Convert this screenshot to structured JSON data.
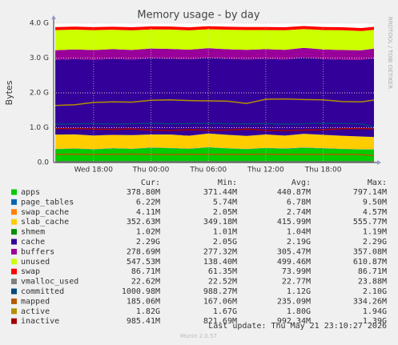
{
  "chart_data": {
    "type": "area",
    "title": "Memory usage - by day",
    "y_label": "Bytes",
    "side_text": "RRDTOOL / TOBI OETIKER",
    "footer_update": "Last update: Thu May 21 23:10:27 2026",
    "footer_version": "Munin 2.0.57",
    "stat_headers": [
      "Cur:",
      "Min:",
      "Avg:",
      "Max:"
    ],
    "categories": [
      null,
      null,
      "Wed 18:00",
      null,
      null,
      "Thu 00:00",
      null,
      null,
      "Thu 06:00",
      null,
      null,
      "Thu 12:00",
      null,
      null,
      "Thu 18:00",
      null,
      null,
      null
    ],
    "ylim": [
      0,
      4294967296
    ],
    "yticks": [
      {
        "value": 0,
        "label": "0.0"
      },
      {
        "value": 1073741824,
        "label": "1.0 G"
      },
      {
        "value": 2147483648,
        "label": "2.0 G"
      },
      {
        "value": 3221225472,
        "label": "3.0 G"
      },
      {
        "value": 4294967296,
        "label": "4.0 G"
      }
    ],
    "grid": true,
    "series": [
      {
        "name": "apps",
        "color": "#00cc00",
        "style": "area",
        "stats": [
          "378.80M",
          "371.44M",
          "440.87M",
          "797.14M"
        ],
        "values": [
          410000000,
          425000000,
          402000000,
          433000000,
          415000000,
          452000000,
          441000000,
          418000000,
          463000000,
          431000000,
          409000000,
          445000000,
          421000000,
          455000000,
          433000000,
          412000000,
          401000000,
          397000000
        ]
      },
      {
        "name": "page_tables",
        "color": "#0066b3",
        "style": "area",
        "stats": [
          "6.22M",
          "5.74M",
          "6.78M",
          "9.50M"
        ],
        "values": [
          7000000,
          7000000,
          7000000,
          7000000,
          7000000,
          7000000,
          7000000,
          7000000,
          7000000,
          7000000,
          7000000,
          7000000,
          7000000,
          7000000,
          7000000,
          7000000,
          7000000,
          6520000
        ]
      },
      {
        "name": "swap_cache",
        "color": "#ff8000",
        "style": "area",
        "stats": [
          "4.11M",
          "2.05M",
          "2.74M",
          "4.57M"
        ],
        "values": [
          3000000,
          3000000,
          3000000,
          3000000,
          3000000,
          3000000,
          3000000,
          3000000,
          3000000,
          3000000,
          3000000,
          3000000,
          3000000,
          3000000,
          3000000,
          3000000,
          3000000,
          4310000
        ]
      },
      {
        "name": "slab_cache",
        "color": "#ffcc00",
        "style": "area",
        "stats": [
          "352.63M",
          "349.18M",
          "415.99M",
          "555.77M"
        ],
        "values": [
          440000000,
          432000000,
          421000000,
          409000000,
          418000000,
          402000000,
          411000000,
          399000000,
          421000000,
          412000000,
          401000000,
          409000000,
          398000000,
          419000000,
          410000000,
          401000000,
          389000000,
          370000000
        ]
      },
      {
        "name": "shmem",
        "color": "#008f00",
        "style": "area",
        "stats": [
          "1.02M",
          "1.01M",
          "1.04M",
          "1.19M"
        ],
        "values": [
          1100000,
          1100000,
          1100000,
          1100000,
          1100000,
          1100000,
          1100000,
          1100000,
          1100000,
          1100000,
          1100000,
          1100000,
          1100000,
          1100000,
          1100000,
          1100000,
          1100000,
          1070000
        ]
      },
      {
        "name": "cache",
        "color": "#330099",
        "style": "area",
        "stats": [
          "2.29G",
          "2.05G",
          "2.19G",
          "2.29G"
        ],
        "values": [
          2300000000,
          2318000000,
          2331000000,
          2342000000,
          2329000000,
          2351000000,
          2338000000,
          2352000000,
          2331000000,
          2343000000,
          2355000000,
          2330000000,
          2342000000,
          2351000000,
          2334000000,
          2345000000,
          2362000000,
          2459000000
        ]
      },
      {
        "name": "buffers",
        "color": "#990099",
        "style": "area",
        "stats": [
          "278.69M",
          "277.32M",
          "305.47M",
          "357.08M"
        ],
        "values": [
          300000000,
          301000000,
          302000000,
          300000000,
          299000000,
          298000000,
          300000000,
          301000000,
          299000000,
          297000000,
          298000000,
          300000000,
          301000000,
          299000000,
          298000000,
          300000000,
          300000000,
          299000000
        ]
      },
      {
        "name": "unused",
        "color": "#ccff00",
        "style": "area",
        "stats": [
          "547.53M",
          "138.40M",
          "499.46M",
          "610.87M"
        ],
        "values": [
          620000000,
          610000000,
          615000000,
          600000000,
          605000000,
          590000000,
          600000000,
          595000000,
          585000000,
          600000000,
          610000000,
          590000000,
          605000000,
          580000000,
          600000000,
          610000000,
          590000000,
          574000000
        ]
      },
      {
        "name": "swap",
        "color": "#ff0000",
        "style": "area",
        "stats": [
          "86.71M",
          "61.35M",
          "73.99M",
          "86.71M"
        ],
        "values": [
          93000000,
          93000000,
          93000000,
          93000000,
          93000000,
          93000000,
          93000000,
          93000000,
          93000000,
          93000000,
          93000000,
          93000000,
          93000000,
          93000000,
          93000000,
          93000000,
          93000000,
          90900000
        ]
      },
      {
        "name": "vmalloc_used",
        "color": "#808080",
        "style": "line",
        "stats": [
          "22.62M",
          "22.52M",
          "22.77M",
          "23.88M"
        ],
        "values": [
          24000000,
          24000000,
          24000000,
          24000000,
          24000000,
          24000000,
          24000000,
          24000000,
          24000000,
          24000000,
          24000000,
          24000000,
          24000000,
          24000000,
          24000000,
          24000000,
          24000000,
          23720000
        ]
      },
      {
        "name": "committed",
        "color": "#00487d",
        "style": "line",
        "stats": [
          "1000.98M",
          "988.27M",
          "1.12G",
          "2.10G"
        ],
        "values": [
          1180000000,
          1190000000,
          1200000000,
          1185000000,
          1195000000,
          1210000000,
          1190000000,
          1200000000,
          1205000000,
          1195000000,
          1190000000,
          1200000000,
          1185000000,
          1195000000,
          1210000000,
          1200000000,
          1190000000,
          1050000000
        ]
      },
      {
        "name": "mapped",
        "color": "#b35a00",
        "style": "line",
        "stats": [
          "185.06M",
          "167.06M",
          "235.09M",
          "334.26M"
        ],
        "values": [
          250000000,
          255000000,
          248000000,
          252000000,
          260000000,
          250000000,
          245000000,
          255000000,
          250000000,
          248000000,
          252000000,
          255000000,
          250000000,
          248000000,
          252000000,
          250000000,
          245000000,
          194000000
        ]
      },
      {
        "name": "active",
        "color": "#b38f00",
        "style": "line",
        "stats": [
          "1.82G",
          "1.67G",
          "1.80G",
          "1.94G"
        ],
        "values": [
          1760000000,
          1780000000,
          1850000000,
          1870000000,
          1860000000,
          1920000000,
          1930000000,
          1910000000,
          1900000000,
          1890000000,
          1820000000,
          1950000000,
          1960000000,
          1940000000,
          1930000000,
          1880000000,
          1870000000,
          1954000000
        ]
      },
      {
        "name": "inactive",
        "color": "#a00000",
        "style": "line",
        "stats": [
          "985.41M",
          "821.69M",
          "992.34M",
          "1.39G"
        ],
        "values": [
          1040000000,
          1050000000,
          1030000000,
          1020000000,
          1035000000,
          1000000000,
          990000000,
          1010000000,
          995000000,
          1000000000,
          1030000000,
          990000000,
          985000000,
          1000000000,
          1010000000,
          1040000000,
          1050000000,
          1033000000
        ]
      }
    ]
  }
}
